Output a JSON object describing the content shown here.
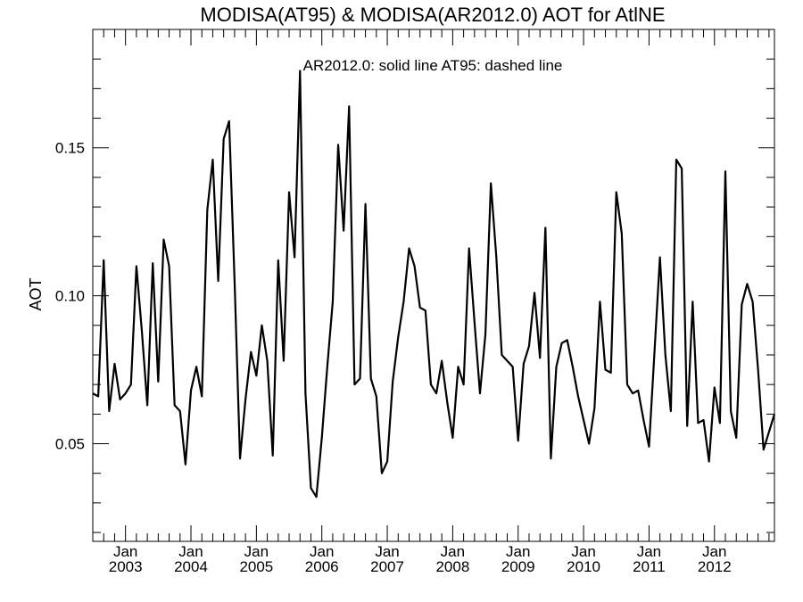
{
  "chart_data": {
    "type": "line",
    "title": "MODISA(AT95) & MODISA(AR2012.0)  AOT for AtlNE",
    "annotation": "AR2012.0: solid line   AT95: dashed line",
    "xlabel": "",
    "ylabel": "AOT",
    "xlim": [
      "2002-07",
      "2012-12"
    ],
    "ylim": [
      0.017,
      0.19
    ],
    "grid": false,
    "y_ticks": [
      {
        "value": 0.05,
        "label": "0.05"
      },
      {
        "value": 0.1,
        "label": "0.10"
      },
      {
        "value": 0.15,
        "label": "0.15"
      }
    ],
    "x_ticks": [
      {
        "date": "2003-01",
        "month": "Jan",
        "year": "2003"
      },
      {
        "date": "2004-01",
        "month": "Jan",
        "year": "2004"
      },
      {
        "date": "2005-01",
        "month": "Jan",
        "year": "2005"
      },
      {
        "date": "2006-01",
        "month": "Jan",
        "year": "2006"
      },
      {
        "date": "2007-01",
        "month": "Jan",
        "year": "2007"
      },
      {
        "date": "2008-01",
        "month": "Jan",
        "year": "2008"
      },
      {
        "date": "2009-01",
        "month": "Jan",
        "year": "2009"
      },
      {
        "date": "2010-01",
        "month": "Jan",
        "year": "2010"
      },
      {
        "date": "2011-01",
        "month": "Jan",
        "year": "2011"
      },
      {
        "date": "2012-01",
        "month": "Jan",
        "year": "2012"
      }
    ],
    "series": [
      {
        "style": "solid",
        "start": "2002-07",
        "values": [
          0.067,
          0.066,
          0.112,
          0.061,
          0.077,
          0.065,
          0.067,
          0.07,
          0.11,
          0.088,
          0.063,
          0.111,
          0.071,
          0.119,
          0.11,
          0.063,
          0.061,
          0.043,
          0.068,
          0.076,
          0.066,
          0.129,
          0.146,
          0.105,
          0.153,
          0.159,
          0.105,
          0.045,
          0.065,
          0.081,
          0.073,
          0.09,
          0.078,
          0.046,
          0.112,
          0.078,
          0.135,
          0.113,
          0.176,
          0.067,
          0.035,
          0.032,
          0.052,
          0.076,
          0.098,
          0.151,
          0.122,
          0.164,
          0.07,
          0.072,
          0.131,
          0.072,
          0.066,
          0.04,
          0.044,
          0.071,
          0.086,
          0.098,
          0.116,
          0.11,
          0.096,
          0.095,
          0.07,
          0.067,
          0.078,
          0.064,
          0.052,
          0.076,
          0.07,
          0.116,
          0.091,
          0.067,
          0.087,
          0.138,
          0.113,
          0.08,
          0.078,
          0.076,
          0.051,
          0.077,
          0.083,
          0.101,
          0.079,
          0.123,
          0.045,
          0.076,
          0.084,
          0.085,
          0.076,
          0.066,
          0.058,
          0.05,
          0.062,
          0.098,
          0.075,
          0.074,
          0.135,
          0.121,
          0.07,
          0.067,
          0.068,
          0.058,
          0.049,
          0.081,
          0.113,
          0.08,
          0.061,
          0.146,
          0.143,
          0.056,
          0.098,
          0.057,
          0.058,
          0.044,
          0.069,
          0.057,
          0.142,
          0.061,
          0.052,
          0.097,
          0.104,
          0.098,
          0.075,
          0.048,
          0.054,
          0.06
        ]
      }
    ]
  }
}
